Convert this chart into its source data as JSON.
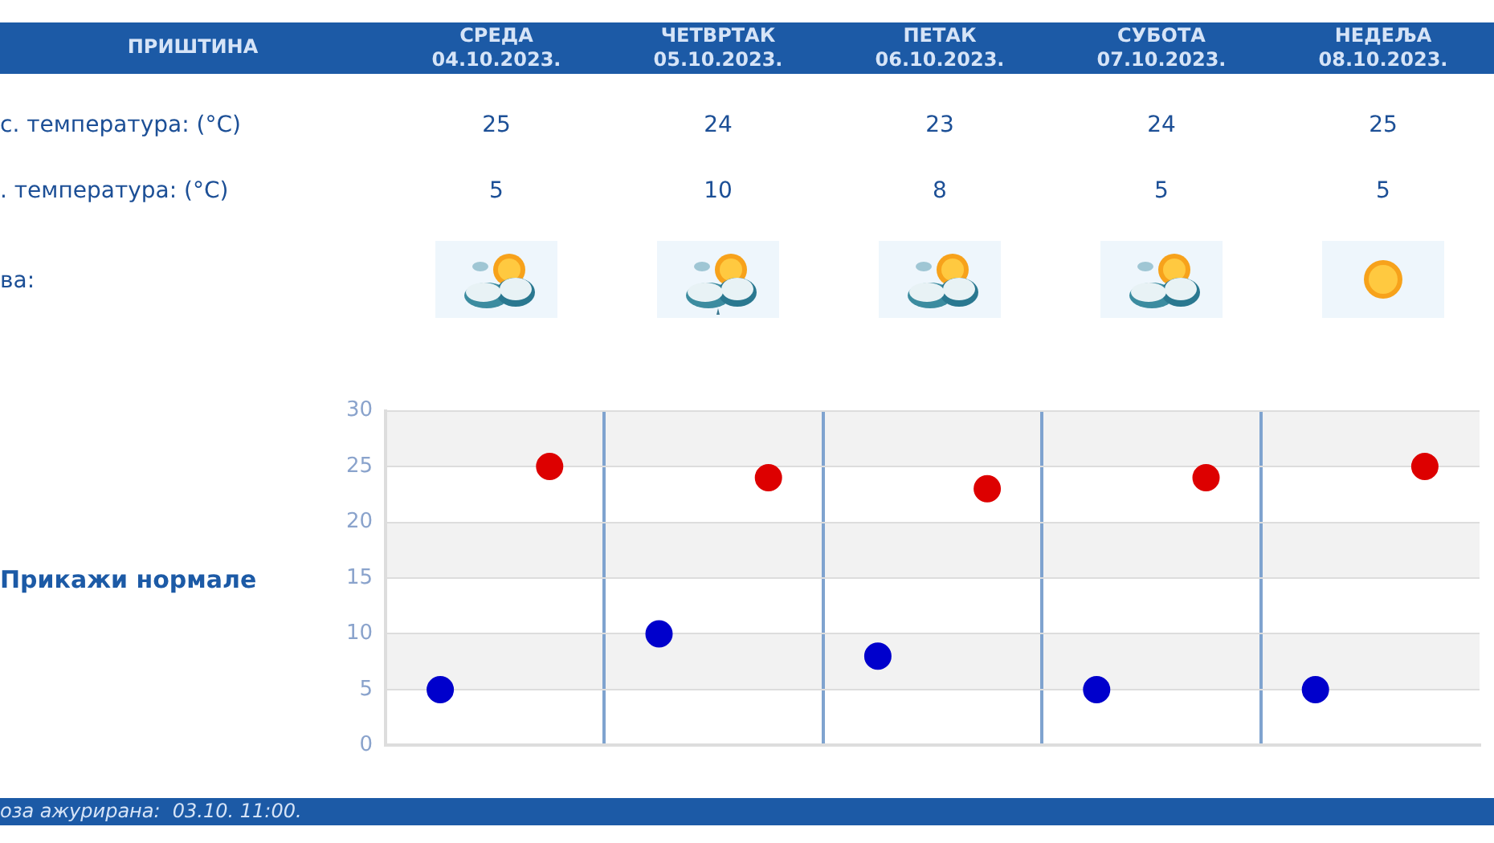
{
  "chart_data": {
    "type": "scatter",
    "title": "ПРИШТИНА",
    "categories": [
      null,
      null,
      null,
      null,
      null
    ],
    "series": [
      {
        "color": "#dd0000",
        "values": [
          25,
          24,
          23,
          24,
          25
        ]
      },
      {
        "color": "#0000cc",
        "values": [
          5,
          10,
          8,
          5,
          5
        ]
      }
    ],
    "ylim": [
      0,
      30
    ],
    "yticks": [
      0,
      5,
      10,
      15,
      20,
      25,
      30
    ],
    "grid": true,
    "legend": false,
    "marker": "circle",
    "data_labels": true,
    "annotations": [
      "СРЕДА 04.10.2023.",
      "ЧЕТВРТАК 05.10.2023.",
      "ПЕТАК 06.10.2023.",
      "СУБОТА 07.10.2023.",
      "НЕДЕЉА 08.10.2023.",
      "с. температура: (°C)",
      ". температура: (°C)",
      "ва:",
      "Прикажи нормале",
      "оза ажурирана:  03.10. 11:00."
    ]
  }
}
